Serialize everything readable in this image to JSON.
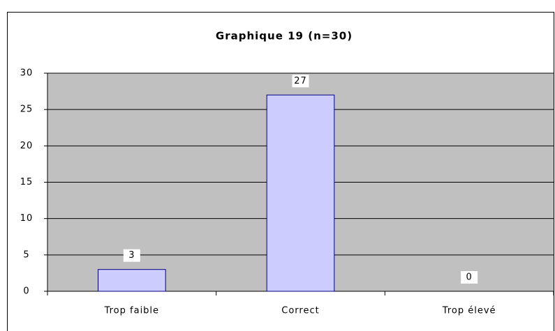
{
  "chart_data": {
    "type": "bar",
    "title": "Graphique 19 (n=30)",
    "categories": [
      "Trop faible",
      "Correct",
      "Trop élevé"
    ],
    "values": [
      3,
      27,
      0
    ],
    "color": "#ccccff",
    "ylim": [
      0,
      30
    ],
    "yticks": [
      0,
      5,
      10,
      15,
      20,
      25,
      30
    ],
    "grid": true
  }
}
